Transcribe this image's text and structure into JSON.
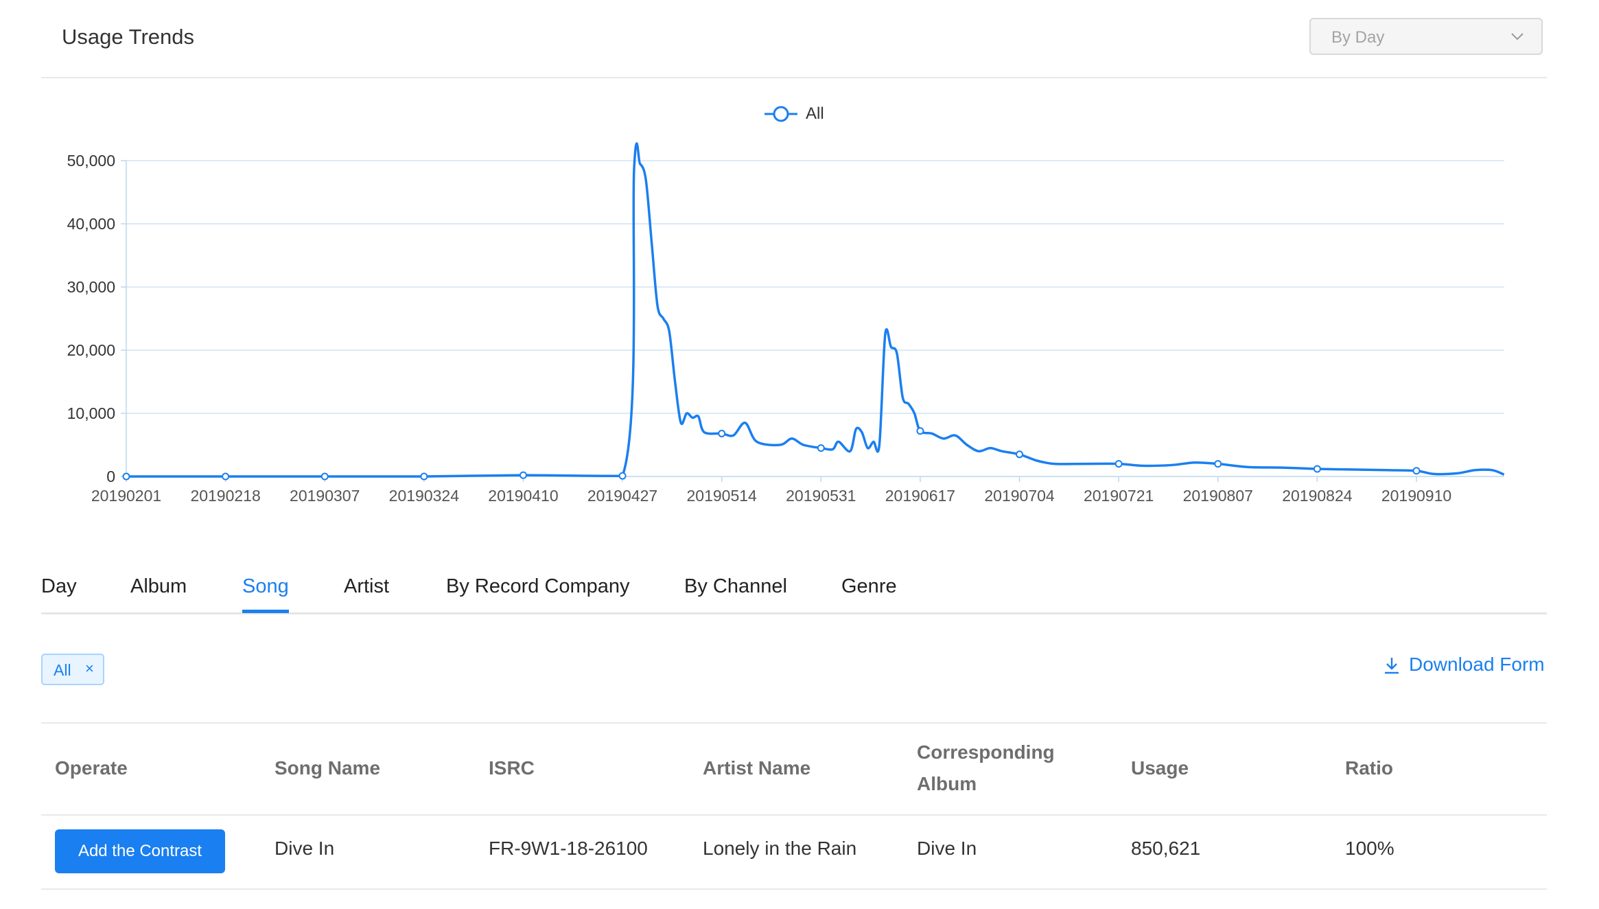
{
  "header": {
    "title": "Usage Trends",
    "period_select": {
      "value": "By Day"
    }
  },
  "legend": {
    "label": "All"
  },
  "chart_data": {
    "type": "line",
    "series": [
      {
        "name": "All",
        "color": "#1a7ff0"
      }
    ],
    "x_ticks": [
      "20190201",
      "20190218",
      "20190307",
      "20190324",
      "20190410",
      "20190427",
      "20190514",
      "20190531",
      "20190617",
      "20190704",
      "20190721",
      "20190807",
      "20190824",
      "20190910"
    ],
    "y_ticks": [
      "0",
      "10,000",
      "20,000",
      "30,000",
      "40,000",
      "50,000"
    ],
    "ylim": [
      0,
      50000
    ],
    "grid": true,
    "points": [
      [
        "20190201",
        0
      ],
      [
        "20190218",
        0
      ],
      [
        "20190307",
        0
      ],
      [
        "20190324",
        0
      ],
      [
        "20190410",
        200
      ],
      [
        "20190427",
        100
      ],
      [
        "20190429",
        49000
      ],
      [
        "20190430",
        49500
      ],
      [
        "20190501",
        47000
      ],
      [
        "20190502",
        37000
      ],
      [
        "20190503",
        27000
      ],
      [
        "20190504",
        25000
      ],
      [
        "20190505",
        23000
      ],
      [
        "20190506",
        15000
      ],
      [
        "20190507",
        8500
      ],
      [
        "20190508",
        10000
      ],
      [
        "20190509",
        9300
      ],
      [
        "20190510",
        9500
      ],
      [
        "20190511",
        7000
      ],
      [
        "20190514",
        6800
      ],
      [
        "20190516",
        6500
      ],
      [
        "20190518",
        8500
      ],
      [
        "20190520",
        5500
      ],
      [
        "20190524",
        5000
      ],
      [
        "20190526",
        6000
      ],
      [
        "20190528",
        5000
      ],
      [
        "20190531",
        4500
      ],
      [
        "20190602",
        4300
      ],
      [
        "20190603",
        5500
      ],
      [
        "20190605",
        4000
      ],
      [
        "20190606",
        7500
      ],
      [
        "20190607",
        7000
      ],
      [
        "20190608",
        4500
      ],
      [
        "20190609",
        5500
      ],
      [
        "20190610",
        5000
      ],
      [
        "20190611",
        22500
      ],
      [
        "20190612",
        20500
      ],
      [
        "20190613",
        19500
      ],
      [
        "20190614",
        12500
      ],
      [
        "20190615",
        11500
      ],
      [
        "20190616",
        10000
      ],
      [
        "20190617",
        7200
      ],
      [
        "20190619",
        6800
      ],
      [
        "20190621",
        6000
      ],
      [
        "20190623",
        6500
      ],
      [
        "20190625",
        5000
      ],
      [
        "20190627",
        4000
      ],
      [
        "20190629",
        4500
      ],
      [
        "20190701",
        4000
      ],
      [
        "20190704",
        3500
      ],
      [
        "20190707",
        2500
      ],
      [
        "20190710",
        2000
      ],
      [
        "20190715",
        2000
      ],
      [
        "20190721",
        2000
      ],
      [
        "20190725",
        1700
      ],
      [
        "20190730",
        1800
      ],
      [
        "20190803",
        2200
      ],
      [
        "20190807",
        2000
      ],
      [
        "20190812",
        1500
      ],
      [
        "20190818",
        1400
      ],
      [
        "20190824",
        1200
      ],
      [
        "20190830",
        1100
      ],
      [
        "20190905",
        1000
      ],
      [
        "20190910",
        900
      ],
      [
        "20190913",
        400
      ],
      [
        "20190917",
        500
      ],
      [
        "20190920",
        1000
      ],
      [
        "20190923",
        1000
      ],
      [
        "20190925",
        300
      ]
    ]
  },
  "tabs": [
    {
      "label": "Day",
      "active": false
    },
    {
      "label": "Album",
      "active": false
    },
    {
      "label": "Song",
      "active": true
    },
    {
      "label": "Artist",
      "active": false
    },
    {
      "label": "By Record Company",
      "active": false
    },
    {
      "label": "By Channel",
      "active": false
    },
    {
      "label": "Genre",
      "active": false
    }
  ],
  "filter_tag": {
    "label": "All",
    "close": "×"
  },
  "download": {
    "label": "Download Form"
  },
  "table": {
    "columns": [
      "Operate",
      "Song Name",
      "ISRC",
      "Artist Name",
      "Corresponding Album",
      "Usage",
      "Ratio"
    ],
    "columns_display": {
      "album_line1": "Corresponding",
      "album_line2": "Album"
    },
    "rows": [
      {
        "action": "Add the Contrast",
        "song_name": "Dive In",
        "isrc": "FR-9W1-18-26100",
        "artist_name": "Lonely in the Rain",
        "album": "Dive In",
        "usage": "850,621",
        "ratio": "100%"
      }
    ]
  },
  "colors": {
    "accent": "#1a7ff0",
    "grid": "#cfe4f5",
    "axis_text": "#555555"
  }
}
